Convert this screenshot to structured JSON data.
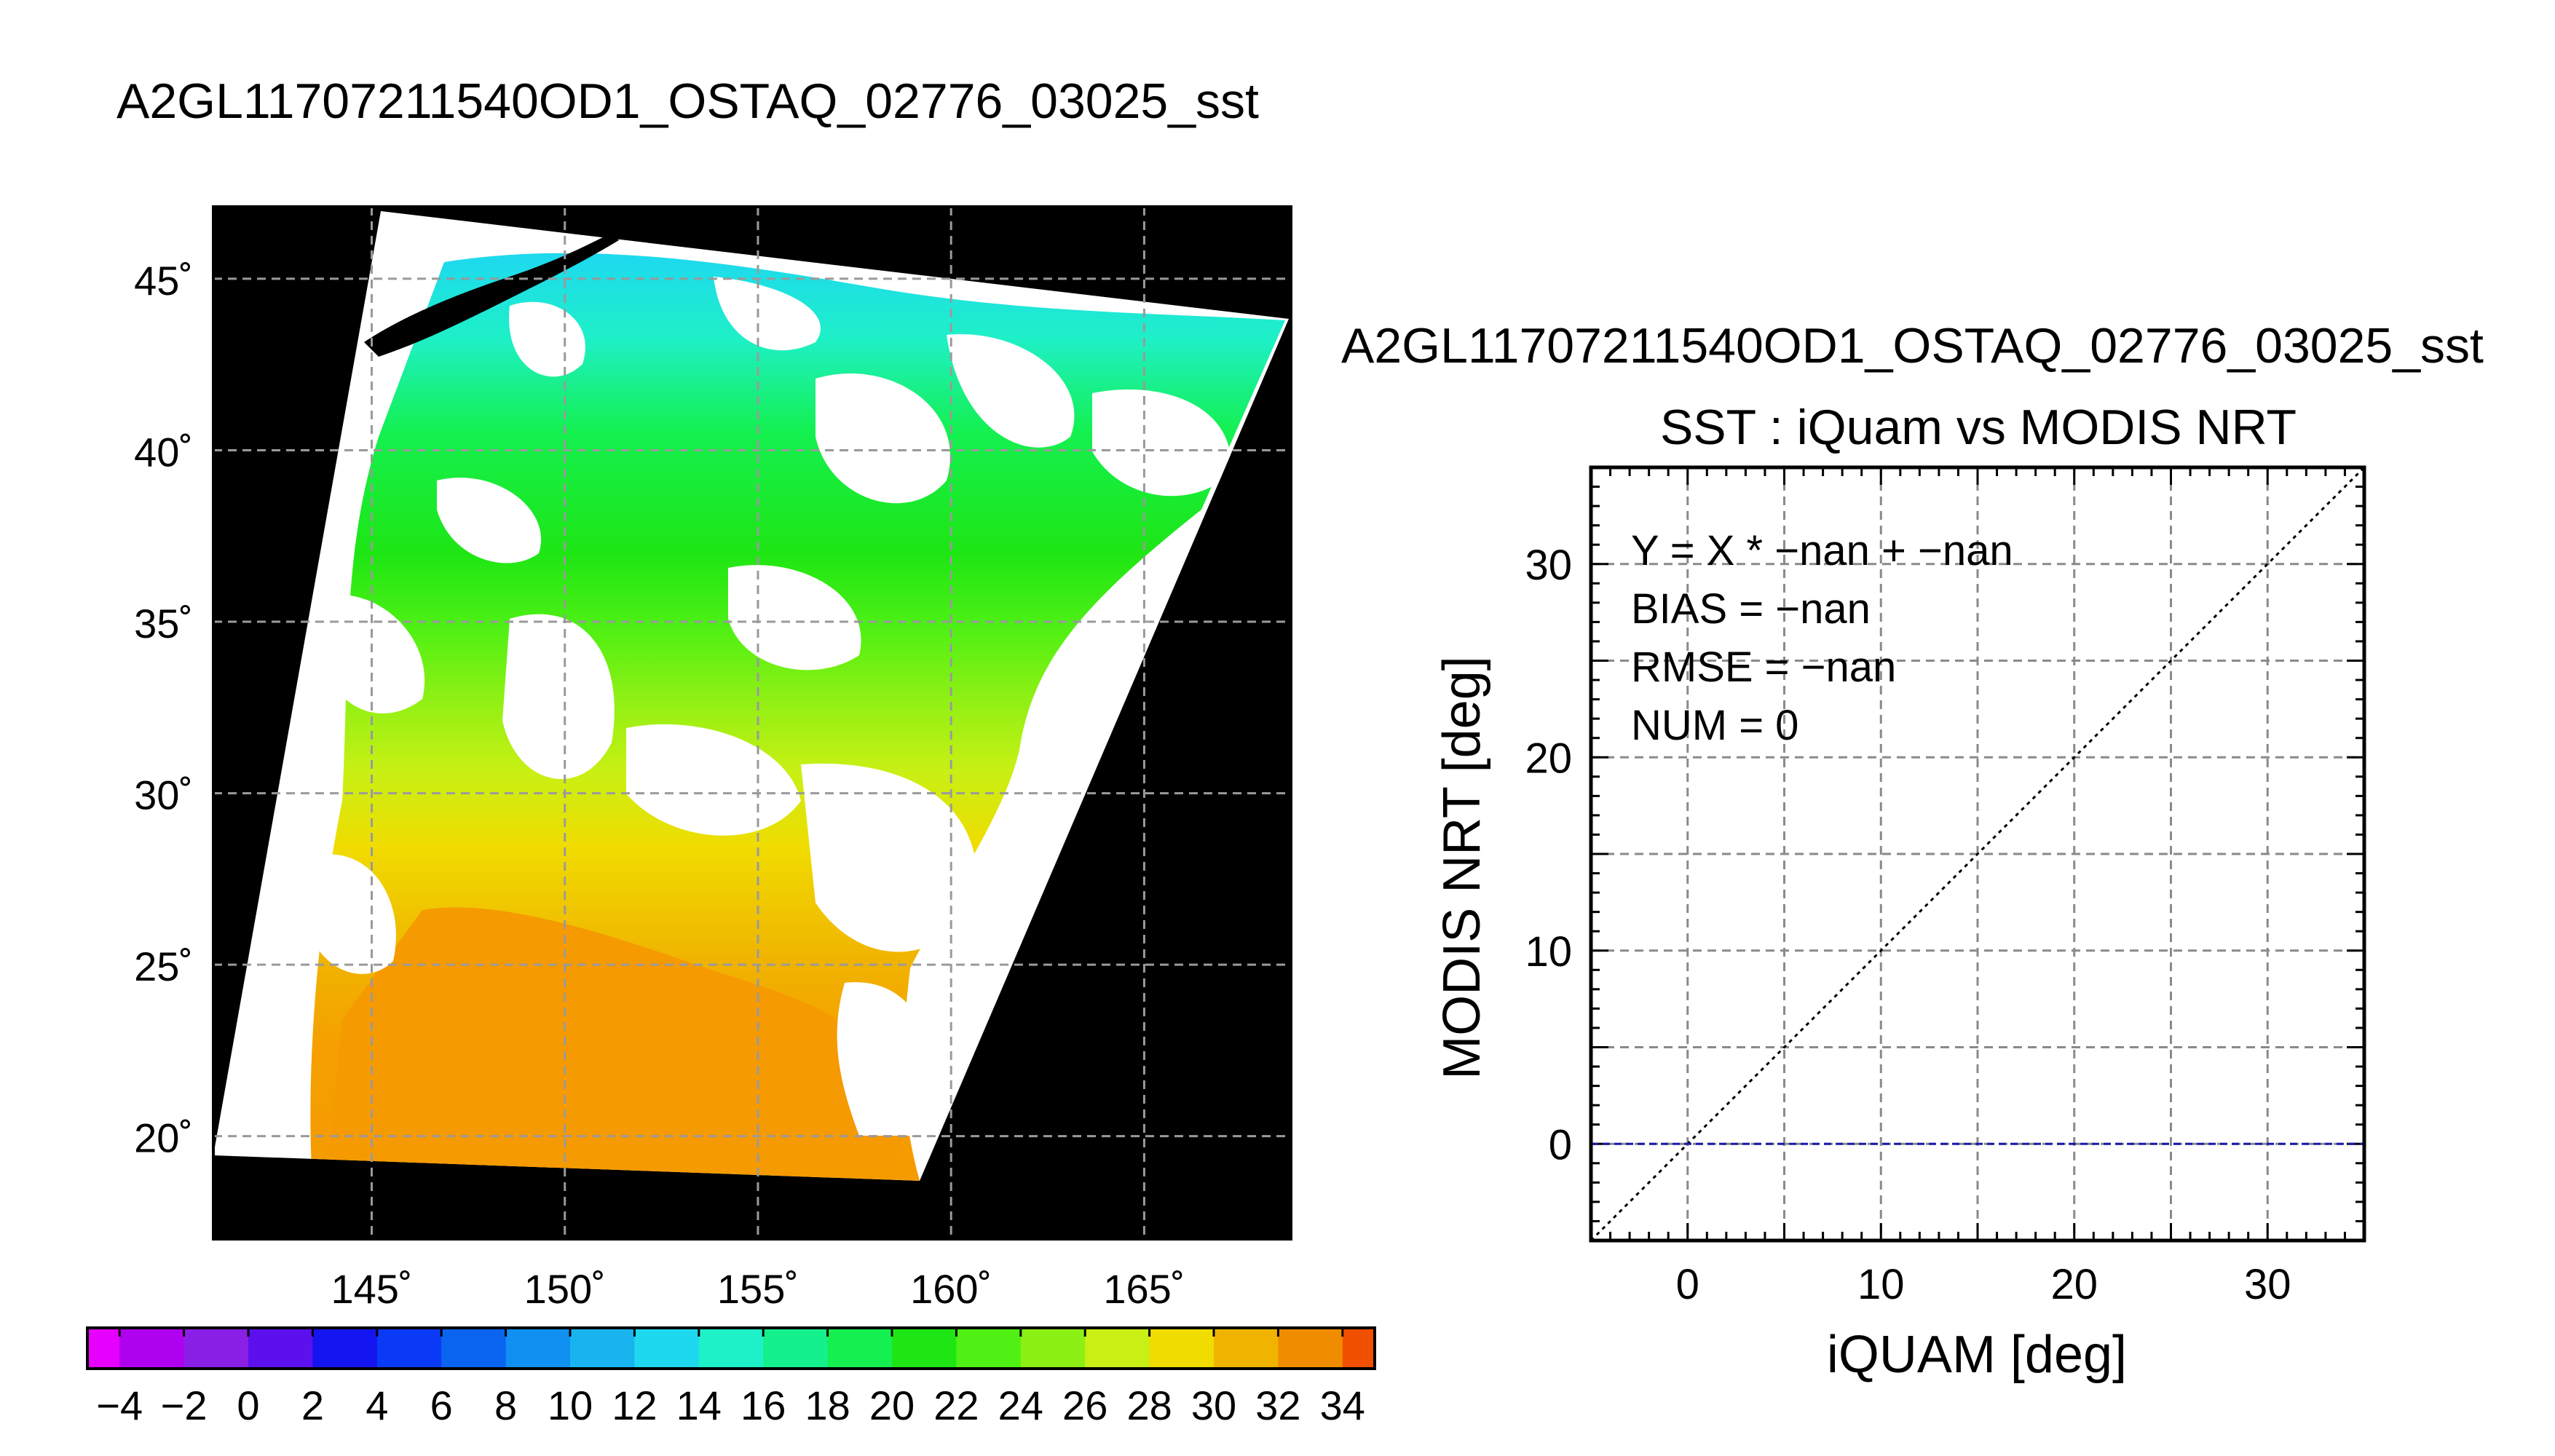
{
  "map_panel": {
    "title": "A2GL11707211540OD1_OSTAQ_02776_03025_sst",
    "lat_ticks": [
      {
        "value": 20,
        "label": "20˚"
      },
      {
        "value": 25,
        "label": "25˚"
      },
      {
        "value": 30,
        "label": "30˚"
      },
      {
        "value": 35,
        "label": "35˚"
      },
      {
        "value": 40,
        "label": "40˚"
      },
      {
        "value": 45,
        "label": "45˚"
      }
    ],
    "lon_ticks": [
      {
        "value": 145,
        "label": "145˚"
      },
      {
        "value": 150,
        "label": "150˚"
      },
      {
        "value": 155,
        "label": "155˚"
      },
      {
        "value": 160,
        "label": "160˚"
      },
      {
        "value": 165,
        "label": "165˚"
      }
    ],
    "lon_range": [
      140.9,
      168.8
    ],
    "lat_range": [
      17.0,
      47.1
    ],
    "colorbar": {
      "min": -5,
      "max": 35,
      "step": 2,
      "labels": [
        "−4",
        "−2",
        "0",
        "2",
        "4",
        "6",
        "8",
        "10",
        "12",
        "14",
        "16",
        "18",
        "20",
        "22",
        "24",
        "26",
        "28",
        "30",
        "32",
        "34"
      ],
      "colors": [
        "#e600ff",
        "#b000f0",
        "#8a1fe6",
        "#5c10ee",
        "#1414f0",
        "#0a3af5",
        "#0a64f0",
        "#1090f0",
        "#19b4f0",
        "#1ed8f0",
        "#1ef0c8",
        "#14f08c",
        "#14f050",
        "#1ee614",
        "#50f014",
        "#8cf014",
        "#c8f014",
        "#f0dc00",
        "#f0b400",
        "#f08c00",
        "#f05000",
        "#f01e00"
      ]
    }
  },
  "scatter_panel": {
    "file_title": "A2GL11707211540OD1_OSTAQ_02776_03025_sst",
    "title": "SST : iQuam vs MODIS NRT",
    "xlabel": "iQUAM [deg]",
    "ylabel": "MODIS NRT [deg]",
    "stats": [
      "Y = X * −nan + −nan",
      "BIAS = −nan",
      "RMSE = −nan",
      "NUM = 0"
    ]
  },
  "chart_data": {
    "type": "scatter",
    "title": "SST : iQuam vs MODIS NRT",
    "xlabel": "iQUAM [deg]",
    "ylabel": "MODIS NRT [deg]",
    "xlim": [
      -5,
      35
    ],
    "ylim": [
      -5,
      35
    ],
    "x_ticks": [
      0,
      10,
      20,
      30
    ],
    "y_ticks": [
      0,
      10,
      20,
      30
    ],
    "grid": true,
    "points": [],
    "reference_lines": [
      {
        "name": "1:1 line",
        "x": [
          -5,
          35
        ],
        "y": [
          -5,
          35
        ],
        "color": "#000000",
        "style": "dotted"
      },
      {
        "name": "zero line",
        "x": [
          -5,
          35
        ],
        "y": [
          0,
          0
        ],
        "color": "#1a1aa8",
        "style": "dashed"
      }
    ]
  }
}
